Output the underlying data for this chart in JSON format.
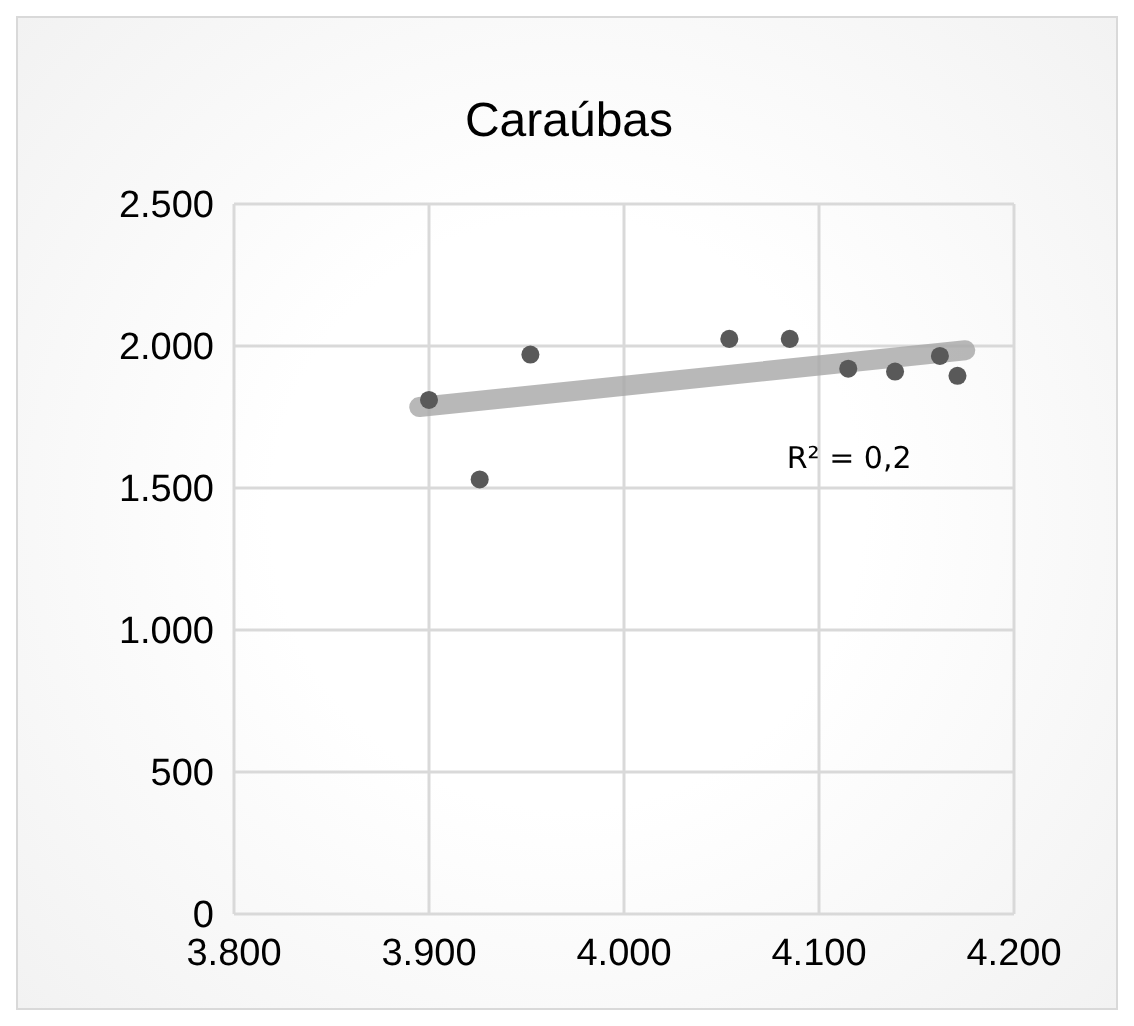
{
  "chart_data": {
    "type": "scatter",
    "title": "Caraúbas",
    "marker": "circle",
    "grid": true,
    "xlim": [
      3800,
      4200
    ],
    "xticks": [
      {
        "value": 3800,
        "label": "3.800"
      },
      {
        "value": 3900,
        "label": "3.900"
      },
      {
        "value": 4000,
        "label": "4.000"
      },
      {
        "value": 4100,
        "label": "4.100"
      },
      {
        "value": 4200,
        "label": "4.200"
      }
    ],
    "ylim": [
      0,
      2500
    ],
    "yticks": [
      0,
      500,
      {
        "value": 1000,
        "label": "1.000"
      },
      {
        "value": 1500,
        "label": "1.500"
      },
      {
        "value": 2000,
        "label": "2.000"
      },
      {
        "value": 2500,
        "label": "2.500"
      }
    ],
    "series": [
      {
        "color": "#595959",
        "x": [
          3900,
          3926,
          3952,
          4054,
          4085,
          4115,
          4139,
          4162,
          4171
        ],
        "values": [
          1810,
          1530,
          1970,
          2025,
          2025,
          1920,
          1910,
          1965,
          1895
        ]
      },
      {
        "type": "line",
        "color": "#a6a6a6",
        "marker": "none",
        "x": [
          3895,
          4175
        ],
        "values": [
          1785,
          1985
        ]
      }
    ],
    "annotations": [
      "R² = 0,2"
    ]
  }
}
